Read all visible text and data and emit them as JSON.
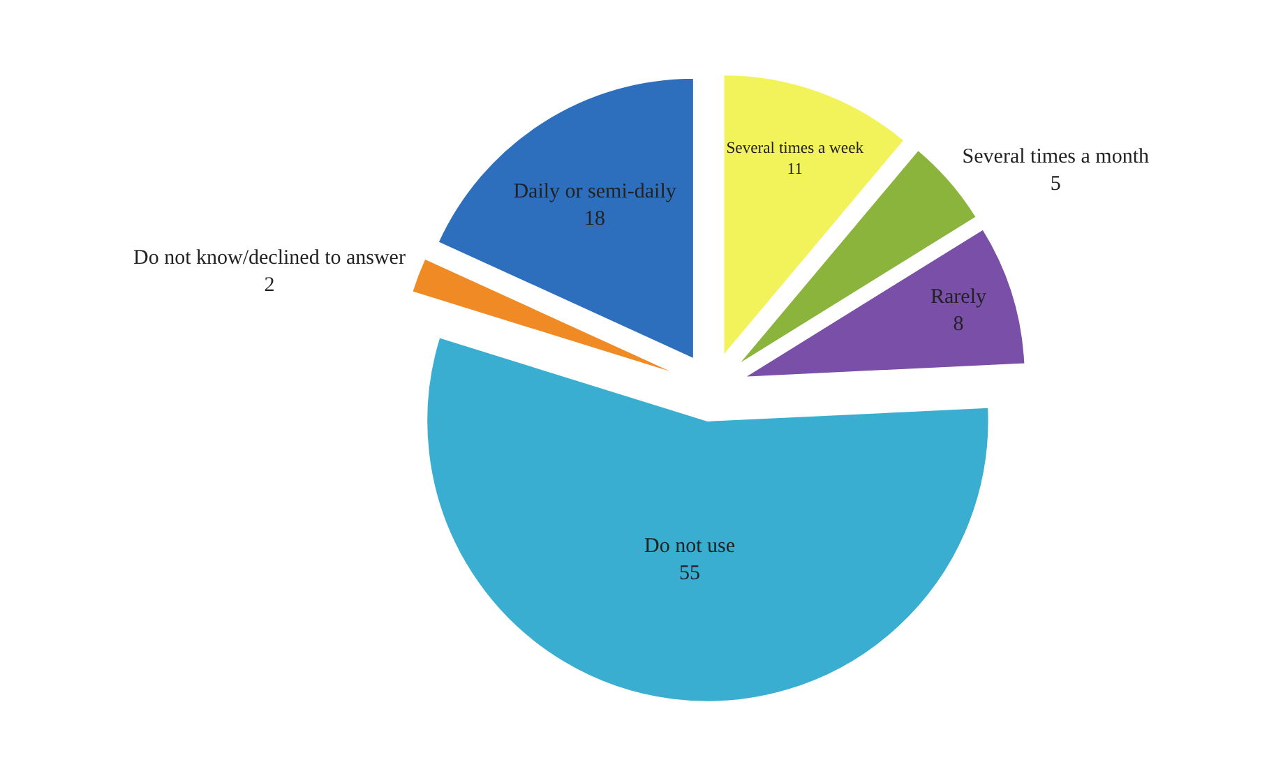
{
  "chart_data": {
    "type": "pie",
    "categories": [
      "Daily or semi-daily",
      "Several times a week",
      "Several times a month",
      "Rarely",
      "Do not use",
      "Do not know/declined to answer"
    ],
    "values": [
      18,
      11,
      5,
      8,
      55,
      2
    ],
    "colors": [
      "#2e6fbd",
      "#f2f25a",
      "#8ab43c",
      "#7a4fa8",
      "#3aaed0",
      "#f08a24"
    ],
    "data_labels": true,
    "legend": false
  }
}
